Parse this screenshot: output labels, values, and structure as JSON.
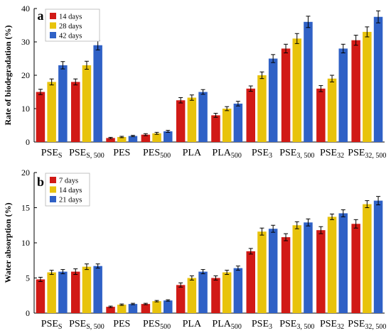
{
  "colors": {
    "red": "#d11a16",
    "yellow": "#e8c30c",
    "blue": "#2f61c6",
    "axis": "#000000"
  },
  "chart_data": [
    {
      "type": "bar",
      "panel_label": "a",
      "title": "",
      "ylabel": "Rate of biodegradation (%)",
      "xlabel": "",
      "ylim": [
        0,
        40
      ],
      "yticks": [
        "0",
        "10",
        "20",
        "30",
        "40"
      ],
      "grid": false,
      "legend_position": "top-left",
      "categories": [
        {
          "base": "PSE",
          "sub": "S"
        },
        {
          "base": "PSE",
          "sub": "S, 500"
        },
        {
          "base": "PES",
          "sub": ""
        },
        {
          "base": "PES",
          "sub": "500"
        },
        {
          "base": "PLA",
          "sub": ""
        },
        {
          "base": "PLA",
          "sub": "500"
        },
        {
          "base": "PSE",
          "sub": "3"
        },
        {
          "base": "PSE",
          "sub": "3, 500"
        },
        {
          "base": "PSE",
          "sub": "32"
        },
        {
          "base": "PSE",
          "sub": "32, 500"
        }
      ],
      "series": [
        {
          "name": "14 days",
          "color": "#d11a16",
          "values": [
            15,
            18,
            1.2,
            2.2,
            12.5,
            8,
            16,
            28,
            16,
            30.5
          ],
          "errors": [
            0.8,
            0.9,
            0.2,
            0.3,
            0.8,
            0.6,
            0.8,
            1.3,
            0.9,
            1.5
          ]
        },
        {
          "name": "28 days",
          "color": "#e8c30c",
          "values": [
            18,
            23,
            1.5,
            2.6,
            13.3,
            10,
            20,
            31,
            19,
            33
          ],
          "errors": [
            0.9,
            1.2,
            0.2,
            0.3,
            0.8,
            0.6,
            1.0,
            1.5,
            1.0,
            1.5
          ]
        },
        {
          "name": "42 days",
          "color": "#2f61c6",
          "values": [
            23,
            29,
            1.8,
            3.2,
            15,
            11.5,
            25,
            36,
            28,
            37.5
          ],
          "errors": [
            1.1,
            1.4,
            0.2,
            0.3,
            0.7,
            0.7,
            1.2,
            1.7,
            1.3,
            1.8
          ]
        }
      ]
    },
    {
      "type": "bar",
      "panel_label": "b",
      "title": "",
      "ylabel": "Water absorption (%)",
      "xlabel": "",
      "ylim": [
        0,
        20
      ],
      "yticks": [
        "0",
        "5",
        "10",
        "15",
        "20"
      ],
      "grid": false,
      "legend_position": "top-left",
      "categories": [
        {
          "base": "PSE",
          "sub": "S"
        },
        {
          "base": "PSE",
          "sub": "S, 500"
        },
        {
          "base": "PES",
          "sub": ""
        },
        {
          "base": "PES",
          "sub": "500"
        },
        {
          "base": "PLA",
          "sub": ""
        },
        {
          "base": "PLA",
          "sub": "500"
        },
        {
          "base": "PSE",
          "sub": "3"
        },
        {
          "base": "PSE",
          "sub": "3, 500"
        },
        {
          "base": "PSE",
          "sub": "32"
        },
        {
          "base": "PSE",
          "sub": "32, 500"
        }
      ],
      "series": [
        {
          "name": "7 days",
          "color": "#d11a16",
          "values": [
            4.8,
            5.9,
            0.9,
            1.3,
            4.0,
            5.0,
            8.8,
            10.8,
            11.8,
            12.7
          ],
          "errors": [
            0.3,
            0.4,
            0.1,
            0.1,
            0.3,
            0.3,
            0.4,
            0.5,
            0.5,
            0.6
          ]
        },
        {
          "name": "14 days",
          "color": "#e8c30c",
          "values": [
            5.8,
            6.6,
            1.2,
            1.7,
            5.0,
            5.8,
            11.6,
            12.5,
            13.7,
            15.5
          ],
          "errors": [
            0.3,
            0.4,
            0.1,
            0.1,
            0.3,
            0.3,
            0.5,
            0.5,
            0.4,
            0.5
          ]
        },
        {
          "name": "21 days",
          "color": "#2f61c6",
          "values": [
            5.9,
            6.7,
            1.3,
            1.8,
            5.9,
            6.4,
            12.0,
            12.9,
            14.2,
            16.0
          ],
          "errors": [
            0.3,
            0.3,
            0.1,
            0.1,
            0.3,
            0.3,
            0.5,
            0.5,
            0.5,
            0.6
          ]
        }
      ]
    }
  ]
}
